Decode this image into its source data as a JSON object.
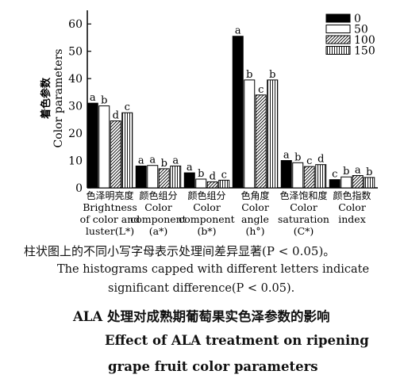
{
  "chart_data": {
    "type": "bar",
    "ylabel_zh": "着色参数",
    "ylabel_en": "Color parameters",
    "ylim": [
      0,
      65
    ],
    "yticks": [
      0,
      10,
      20,
      30,
      40,
      50,
      60
    ],
    "series": [
      {
        "name": "0",
        "values": [
          31.0,
          8.0,
          5.5,
          55.5,
          10.0,
          3.0
        ],
        "letters": [
          "a",
          "a",
          "a",
          "a",
          "a",
          "c"
        ]
      },
      {
        "name": "50",
        "values": [
          30.0,
          8.2,
          3.2,
          39.5,
          9.2,
          4.0
        ],
        "letters": [
          "b",
          "a",
          "b",
          "b",
          "b",
          "b"
        ]
      },
      {
        "name": "100",
        "values": [
          24.5,
          7.0,
          2.2,
          34.0,
          7.8,
          4.5
        ],
        "letters": [
          "d",
          "b",
          "d",
          "c",
          "c",
          "a"
        ]
      },
      {
        "name": "150",
        "values": [
          27.5,
          8.0,
          2.8,
          39.5,
          8.5,
          3.8
        ],
        "letters": [
          "c",
          "a",
          "c",
          "b",
          "d",
          "b"
        ]
      }
    ],
    "categories": [
      {
        "lines": [
          "色泽明亮度",
          "Brightness",
          "of color and",
          "luster(L*)"
        ]
      },
      {
        "lines": [
          "颜色组分",
          "Color",
          "component",
          "(a*)"
        ]
      },
      {
        "lines": [
          "颜色组分",
          "Color",
          "component",
          "(b*)"
        ]
      },
      {
        "lines": [
          "色角度",
          "Color",
          "angle",
          "(h°)"
        ]
      },
      {
        "lines": [
          "色泽饱和度",
          "Color",
          "saturation",
          "(C*)"
        ]
      },
      {
        "lines": [
          "颜色指数",
          "Color",
          "index"
        ]
      }
    ],
    "legend_position": "top-right",
    "colors": {
      "bar_0": "#000000",
      "bar_50": "#ffffff",
      "axis": "#000000"
    },
    "patterns": [
      "solid-black",
      "white",
      "diagonal-hatch",
      "vertical-lines"
    ]
  },
  "caption": {
    "note_zh": "柱状图上的不同小写字母表示处理间差异显著(P < 0.05)。",
    "note_en_1": "The histograms capped with different letters indicate",
    "note_en_2": "significant difference(P < 0.05).",
    "title_zh": "ALA 处理对成熟期葡萄果实色泽参数的影响",
    "title_en_1": "Effect of ALA treatment on ripening",
    "title_en_2": "grape fruit color parameters"
  }
}
